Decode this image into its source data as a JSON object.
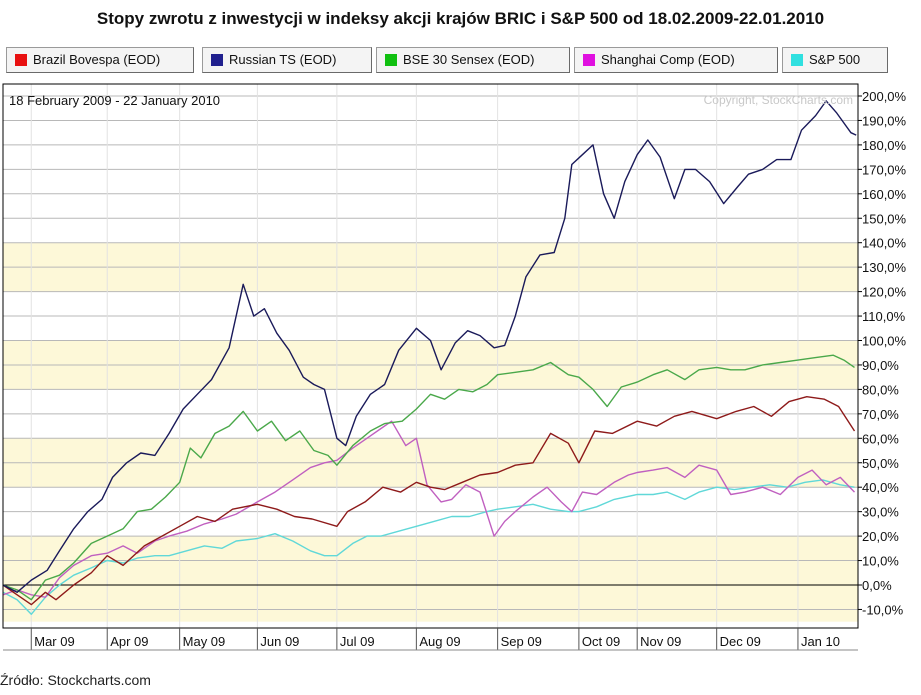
{
  "title": "Stopy zwrotu z inwestycji w indeksy akcji krajów BRIC i S&P 500 od 18.02.2009-22.01.2010",
  "source": "Źródło: Stockcharts.com",
  "chart_data": {
    "type": "line",
    "title": "Stopy zwrotu z inwestycji w indeksy akcji krajów BRIC i S&P 500 od 18.02.2009-22.01.2010",
    "date_range_label": "18 February 2009 - 22 January 2010",
    "watermark": "Copyright, StockCharts.com",
    "ylim": [
      -15,
      205
    ],
    "y_ticks": [
      -10,
      0,
      10,
      20,
      30,
      40,
      50,
      60,
      70,
      80,
      90,
      100,
      110,
      120,
      130,
      140,
      150,
      160,
      170,
      180,
      190,
      200
    ],
    "y_tick_labels": [
      "-10,0%",
      "0,0%",
      "10,0%",
      "20,0%",
      "30,0%",
      "40,0%",
      "50,0%",
      "60,0%",
      "70,0%",
      "80,0%",
      "90,0%",
      "100,0%",
      "110,0%",
      "120,0%",
      "130,0%",
      "140,0%",
      "150,0%",
      "160,0%",
      "170,0%",
      "180,0%",
      "190,0%",
      "200,0%"
    ],
    "x_range": [
      0,
      48.4
    ],
    "x_months": [
      {
        "label": "Mar 09",
        "x": 1.6
      },
      {
        "label": "Apr 09",
        "x": 5.9
      },
      {
        "label": "May 09",
        "x": 10.0
      },
      {
        "label": "Jun 09",
        "x": 14.4
      },
      {
        "label": "Jul 09",
        "x": 18.9
      },
      {
        "label": "Aug 09",
        "x": 23.4
      },
      {
        "label": "Sep 09",
        "x": 28.0
      },
      {
        "label": "Oct 09",
        "x": 32.6
      },
      {
        "label": "Nov 09",
        "x": 35.9
      },
      {
        "label": "Dec 09",
        "x": 40.4
      },
      {
        "label": "Jan 10",
        "x": 45.0
      }
    ],
    "series": [
      {
        "name": "Brazil Bovespa (EOD)",
        "color": "#e81010",
        "line_color": "#8e1a1a",
        "points": [
          [
            0,
            0
          ],
          [
            0.8,
            -4
          ],
          [
            1.6,
            -8
          ],
          [
            2.4,
            -3
          ],
          [
            3,
            -6
          ],
          [
            4,
            0
          ],
          [
            5,
            5
          ],
          [
            5.9,
            12
          ],
          [
            6.8,
            8
          ],
          [
            8,
            16
          ],
          [
            9,
            20
          ],
          [
            10,
            24
          ],
          [
            11,
            28
          ],
          [
            12,
            26
          ],
          [
            13,
            31
          ],
          [
            14.4,
            33
          ],
          [
            15.5,
            31
          ],
          [
            16.5,
            28
          ],
          [
            17.5,
            27
          ],
          [
            18.9,
            24
          ],
          [
            19.5,
            30
          ],
          [
            20.5,
            34
          ],
          [
            21.5,
            40
          ],
          [
            22.5,
            38
          ],
          [
            23.4,
            42
          ],
          [
            24.2,
            40
          ],
          [
            25,
            39
          ],
          [
            26,
            42
          ],
          [
            27,
            45
          ],
          [
            28,
            46
          ],
          [
            29,
            49
          ],
          [
            30,
            50
          ],
          [
            31,
            62
          ],
          [
            32,
            58
          ],
          [
            32.6,
            50
          ],
          [
            33.5,
            63
          ],
          [
            34.5,
            62
          ],
          [
            35.9,
            67
          ],
          [
            37,
            65
          ],
          [
            38,
            69
          ],
          [
            39,
            71
          ],
          [
            40.4,
            68
          ],
          [
            41.5,
            71
          ],
          [
            42.5,
            73
          ],
          [
            43.5,
            69
          ],
          [
            44.5,
            75
          ],
          [
            45.5,
            77
          ],
          [
            46.5,
            76
          ],
          [
            47.3,
            73
          ],
          [
            48.2,
            63
          ]
        ]
      },
      {
        "name": "Russian TS (EOD)",
        "color": "#20208e",
        "line_color": "#1a1a5a",
        "points": [
          [
            0,
            0
          ],
          [
            0.8,
            -3
          ],
          [
            1.6,
            2
          ],
          [
            2.5,
            6
          ],
          [
            3.2,
            14
          ],
          [
            4,
            23
          ],
          [
            4.8,
            30
          ],
          [
            5.6,
            35
          ],
          [
            6.2,
            44
          ],
          [
            7,
            50
          ],
          [
            7.8,
            54
          ],
          [
            8.6,
            53
          ],
          [
            9.4,
            62
          ],
          [
            10.2,
            72
          ],
          [
            11,
            78
          ],
          [
            11.8,
            84
          ],
          [
            12.8,
            97
          ],
          [
            13.6,
            123
          ],
          [
            14.2,
            110
          ],
          [
            14.8,
            113
          ],
          [
            15.5,
            103
          ],
          [
            16.2,
            96
          ],
          [
            17,
            85
          ],
          [
            17.6,
            82
          ],
          [
            18.2,
            80
          ],
          [
            18.9,
            60
          ],
          [
            19.4,
            57
          ],
          [
            20,
            69
          ],
          [
            20.8,
            78
          ],
          [
            21.6,
            82
          ],
          [
            22.4,
            96
          ],
          [
            23.4,
            105
          ],
          [
            24.2,
            100
          ],
          [
            24.8,
            88
          ],
          [
            25.6,
            99
          ],
          [
            26.3,
            104
          ],
          [
            27,
            102
          ],
          [
            27.8,
            97
          ],
          [
            28.4,
            98
          ],
          [
            29,
            110
          ],
          [
            29.6,
            126
          ],
          [
            30.4,
            135
          ],
          [
            31.2,
            136
          ],
          [
            31.8,
            150
          ],
          [
            32.2,
            172
          ],
          [
            32.8,
            176
          ],
          [
            33.4,
            180
          ],
          [
            34,
            160
          ],
          [
            34.6,
            150
          ],
          [
            35.2,
            165
          ],
          [
            35.9,
            176
          ],
          [
            36.5,
            182
          ],
          [
            37.2,
            175
          ],
          [
            38,
            158
          ],
          [
            38.6,
            170
          ],
          [
            39.2,
            170
          ],
          [
            40,
            165
          ],
          [
            40.8,
            156
          ],
          [
            41.6,
            163
          ],
          [
            42.2,
            168
          ],
          [
            43,
            170
          ],
          [
            43.8,
            174
          ],
          [
            44.6,
            174
          ],
          [
            45.2,
            186
          ],
          [
            46,
            192
          ],
          [
            46.6,
            198
          ],
          [
            47.2,
            193
          ],
          [
            48.0,
            185
          ],
          [
            48.3,
            184
          ]
        ]
      },
      {
        "name": "BSE 30 Sensex (EOD)",
        "color": "#10c010",
        "line_color": "#4aa84a",
        "points": [
          [
            0,
            0
          ],
          [
            0.8,
            -2
          ],
          [
            1.6,
            -6
          ],
          [
            2.4,
            2
          ],
          [
            3.2,
            4
          ],
          [
            4,
            9
          ],
          [
            5,
            17
          ],
          [
            5.9,
            20
          ],
          [
            6.8,
            23
          ],
          [
            7.6,
            30
          ],
          [
            8.4,
            31
          ],
          [
            9.2,
            36
          ],
          [
            10,
            42
          ],
          [
            10.6,
            56
          ],
          [
            11.2,
            52
          ],
          [
            12,
            62
          ],
          [
            12.8,
            65
          ],
          [
            13.6,
            71
          ],
          [
            14.4,
            63
          ],
          [
            15.2,
            67
          ],
          [
            16,
            59
          ],
          [
            16.8,
            63
          ],
          [
            17.6,
            55
          ],
          [
            18.4,
            53
          ],
          [
            18.9,
            49
          ],
          [
            19.8,
            57
          ],
          [
            20.8,
            63
          ],
          [
            21.6,
            66
          ],
          [
            22.6,
            67
          ],
          [
            23.4,
            72
          ],
          [
            24.2,
            78
          ],
          [
            25,
            76
          ],
          [
            25.8,
            80
          ],
          [
            26.6,
            79
          ],
          [
            27.4,
            82
          ],
          [
            28,
            86
          ],
          [
            29,
            87
          ],
          [
            30,
            88
          ],
          [
            31,
            91
          ],
          [
            32,
            86
          ],
          [
            32.6,
            85
          ],
          [
            33.4,
            80
          ],
          [
            34.2,
            73
          ],
          [
            35,
            81
          ],
          [
            35.9,
            83
          ],
          [
            36.8,
            86
          ],
          [
            37.6,
            88
          ],
          [
            38.6,
            84
          ],
          [
            39.4,
            88
          ],
          [
            40.4,
            89
          ],
          [
            41.2,
            88
          ],
          [
            42,
            88
          ],
          [
            43,
            90
          ],
          [
            44,
            91
          ],
          [
            45,
            92
          ],
          [
            46,
            93
          ],
          [
            47,
            94
          ],
          [
            47.6,
            92
          ],
          [
            48.2,
            89
          ]
        ]
      },
      {
        "name": "Shanghai Comp (EOD)",
        "color": "#e010e0",
        "line_color": "#c060c0",
        "points": [
          [
            0,
            -4
          ],
          [
            0.8,
            -2
          ],
          [
            1.6,
            -4
          ],
          [
            2.4,
            -5
          ],
          [
            3.2,
            3
          ],
          [
            4,
            8
          ],
          [
            5,
            12
          ],
          [
            5.9,
            13
          ],
          [
            6.8,
            16
          ],
          [
            7.6,
            13
          ],
          [
            8.6,
            18
          ],
          [
            9.4,
            20
          ],
          [
            10.4,
            22
          ],
          [
            11.4,
            25
          ],
          [
            12.4,
            27
          ],
          [
            13.2,
            29
          ],
          [
            14.4,
            34
          ],
          [
            15.4,
            38
          ],
          [
            16.4,
            43
          ],
          [
            17.4,
            48
          ],
          [
            18.2,
            50
          ],
          [
            18.9,
            51
          ],
          [
            19.8,
            56
          ],
          [
            20.6,
            60
          ],
          [
            21.4,
            64
          ],
          [
            22,
            67
          ],
          [
            22.8,
            57
          ],
          [
            23.4,
            60
          ],
          [
            24,
            41
          ],
          [
            24.8,
            34
          ],
          [
            25.4,
            35
          ],
          [
            26.2,
            41
          ],
          [
            27,
            38
          ],
          [
            27.8,
            20
          ],
          [
            28.4,
            26
          ],
          [
            29,
            30
          ],
          [
            30,
            36
          ],
          [
            30.8,
            40
          ],
          [
            31.6,
            34
          ],
          [
            32.2,
            30
          ],
          [
            32.8,
            38
          ],
          [
            33.6,
            37
          ],
          [
            34.6,
            42
          ],
          [
            35.4,
            45
          ],
          [
            35.9,
            46
          ],
          [
            36.8,
            47
          ],
          [
            37.6,
            48
          ],
          [
            38.6,
            44
          ],
          [
            39.4,
            49
          ],
          [
            40.4,
            47
          ],
          [
            41.2,
            37
          ],
          [
            42,
            38
          ],
          [
            43,
            40
          ],
          [
            44,
            37
          ],
          [
            45,
            44
          ],
          [
            45.8,
            47
          ],
          [
            46.6,
            41
          ],
          [
            47.4,
            44
          ],
          [
            48.2,
            38
          ]
        ]
      },
      {
        "name": "S&P 500",
        "color": "#30e0e0",
        "line_color": "#60d8d8",
        "points": [
          [
            0,
            -3
          ],
          [
            0.8,
            -6
          ],
          [
            1.6,
            -12
          ],
          [
            2.4,
            -5
          ],
          [
            3.2,
            0
          ],
          [
            4,
            4
          ],
          [
            5,
            7
          ],
          [
            5.9,
            10
          ],
          [
            6.8,
            9
          ],
          [
            7.6,
            11
          ],
          [
            8.6,
            12
          ],
          [
            9.4,
            12
          ],
          [
            10.4,
            14
          ],
          [
            11.4,
            16
          ],
          [
            12.4,
            15
          ],
          [
            13.2,
            18
          ],
          [
            14.4,
            19
          ],
          [
            15.4,
            21
          ],
          [
            16.4,
            18
          ],
          [
            17.4,
            14
          ],
          [
            18.2,
            12
          ],
          [
            18.9,
            12
          ],
          [
            19.8,
            17
          ],
          [
            20.6,
            20
          ],
          [
            21.4,
            20
          ],
          [
            22.4,
            22
          ],
          [
            23.4,
            24
          ],
          [
            24.4,
            26
          ],
          [
            25.4,
            28
          ],
          [
            26.4,
            28
          ],
          [
            27.4,
            30
          ],
          [
            28,
            31
          ],
          [
            29,
            32
          ],
          [
            30,
            33
          ],
          [
            31,
            31
          ],
          [
            32,
            30
          ],
          [
            32.6,
            30
          ],
          [
            33.6,
            32
          ],
          [
            34.6,
            35
          ],
          [
            35.9,
            37
          ],
          [
            36.8,
            37
          ],
          [
            37.6,
            38
          ],
          [
            38.6,
            35
          ],
          [
            39.4,
            38
          ],
          [
            40.4,
            40
          ],
          [
            41.4,
            39
          ],
          [
            42.4,
            40
          ],
          [
            43.4,
            41
          ],
          [
            44.4,
            40
          ],
          [
            45.4,
            42
          ],
          [
            46.4,
            43
          ],
          [
            47.4,
            41
          ],
          [
            48.2,
            40
          ]
        ]
      }
    ]
  }
}
